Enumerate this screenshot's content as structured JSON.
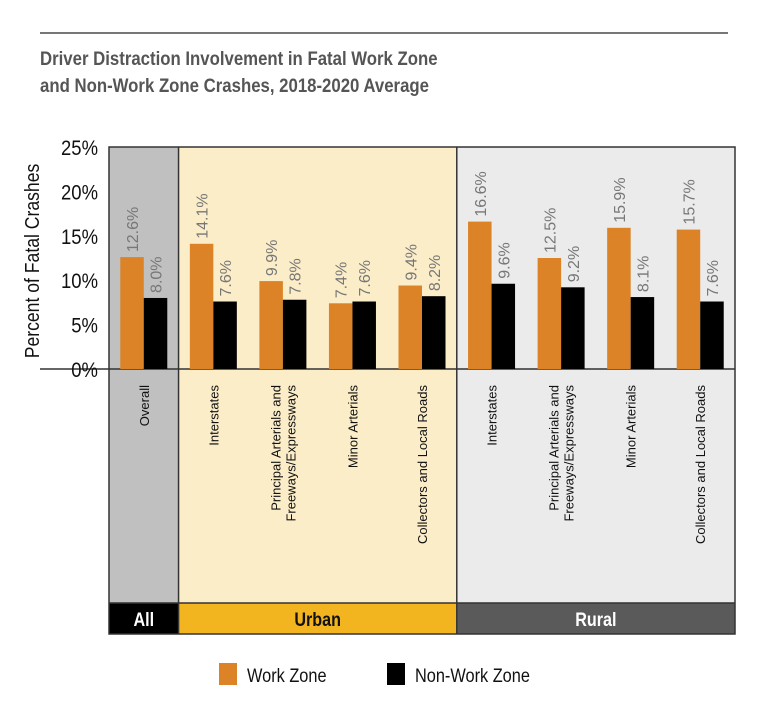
{
  "chart_data": {
    "type": "bar",
    "title_lines": [
      "Driver Distraction Involvement in Fatal Work Zone",
      "and Non-Work Zone Crashes, 2018-2020 Average"
    ],
    "ylabel": "Percent of Fatal Crashes",
    "ylim": [
      0,
      25
    ],
    "yticks": [
      "0%",
      "5%",
      "10%",
      "15%",
      "20%",
      "25%"
    ],
    "grid": false,
    "legend_position": "bottom",
    "groups": [
      {
        "name": "All",
        "color": "#000000",
        "text_color": "#ffffff",
        "bg": "#c0c0c0",
        "categories": [
          [
            "Overall"
          ]
        ]
      },
      {
        "name": "Urban",
        "color": "#f2b51f",
        "text_color": "#111111",
        "bg": "#fcedc9",
        "categories": [
          [
            "Interstates"
          ],
          [
            "Principal Arterials and",
            "Freeways/Expressways"
          ],
          [
            "Minor Arterials"
          ],
          [
            "Collectors and Local Roads"
          ]
        ]
      },
      {
        "name": "Rural",
        "color": "#5a5a5a",
        "text_color": "#ffffff",
        "bg": "#ebebeb",
        "categories": [
          [
            "Interstates"
          ],
          [
            "Principal Arterials and",
            "Freeways/Expressways"
          ],
          [
            "Minor Arterials"
          ],
          [
            "Collectors and Local Roads"
          ]
        ]
      }
    ],
    "series": [
      {
        "name": "Work Zone",
        "color": "#dc8327",
        "values": [
          12.6,
          14.1,
          9.9,
          7.4,
          9.4,
          16.6,
          12.5,
          15.9,
          15.7
        ],
        "labels": [
          "12.6%",
          "14.1%",
          "9.9%",
          "7.4%",
          "9.4%",
          "16.6%",
          "12.5%",
          "15.9%",
          "15.7%"
        ]
      },
      {
        "name": "Non-Work Zone",
        "color": "#000000",
        "values": [
          8.0,
          7.6,
          7.8,
          7.6,
          8.2,
          9.6,
          9.2,
          8.1,
          7.6
        ],
        "labels": [
          "8.0%",
          "7.6%",
          "7.8%",
          "7.6%",
          "8.2%",
          "9.6%",
          "9.2%",
          "8.1%",
          "7.6%"
        ]
      }
    ]
  }
}
